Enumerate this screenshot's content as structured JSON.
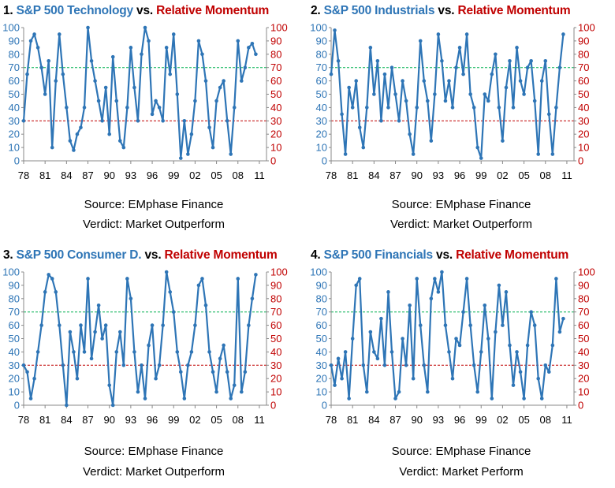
{
  "panels": [
    {
      "title_num": "1.",
      "title_main": "S&P 500 Technology",
      "title_vs": "vs.",
      "title_rel": "Relative Momentum",
      "source": "Source: EMphase Finance",
      "verdict": "Verdict: Market Outperform"
    },
    {
      "title_num": "2.",
      "title_main": "S&P 500 Industrials",
      "title_vs": "vs.",
      "title_rel": "Relative Momentum",
      "source": "Source: EMphase Finance",
      "verdict": "Verdict: Market Outperform"
    },
    {
      "title_num": "3.",
      "title_main": "S&P 500 Consumer D.",
      "title_vs": "vs.",
      "title_rel": "Relative Momentum",
      "source": "Source: EMphase Finance",
      "verdict": "Verdict: Market Outperform"
    },
    {
      "title_num": "4.",
      "title_main": "S&P 500 Financials",
      "title_vs": "vs.",
      "title_rel": "Relative Momentum",
      "source": "Source: EMphase Finance",
      "verdict": "Verdict: Market Perform"
    }
  ],
  "colors": {
    "series": "#2e75b6",
    "left_axis": "#2e75b6",
    "right_axis": "#c00000",
    "upper_threshold": "#00b050",
    "lower_threshold": "#c00000"
  },
  "chart_data": [
    {
      "type": "line",
      "title": "S&P 500 Technology vs. Relative Momentum",
      "xlim": [
        1978,
        2012
      ],
      "ylim": [
        0,
        100
      ],
      "x_ticks": [
        "78",
        "81",
        "84",
        "87",
        "90",
        "93",
        "96",
        "99",
        "02",
        "05",
        "08",
        "11"
      ],
      "y_ticks": [
        0,
        10,
        20,
        30,
        40,
        50,
        60,
        70,
        80,
        90,
        100
      ],
      "reference_lines": [
        70,
        30
      ],
      "x": [
        1978.0,
        1978.5,
        1979.0,
        1979.5,
        1980.0,
        1980.5,
        1981.0,
        1981.5,
        1982.0,
        1982.5,
        1983.0,
        1983.5,
        1984.0,
        1984.5,
        1985.0,
        1985.5,
        1986.0,
        1986.5,
        1987.0,
        1987.5,
        1988.0,
        1988.5,
        1989.0,
        1989.5,
        1990.0,
        1990.5,
        1991.0,
        1991.5,
        1992.0,
        1992.5,
        1993.0,
        1993.5,
        1994.0,
        1994.5,
        1995.0,
        1995.5,
        1996.0,
        1996.5,
        1997.0,
        1997.5,
        1998.0,
        1998.5,
        1999.0,
        1999.5,
        2000.0,
        2000.5,
        2001.0,
        2001.5,
        2002.0,
        2002.5,
        2003.0,
        2003.5,
        2004.0,
        2004.5,
        2005.0,
        2005.5,
        2006.0,
        2006.5,
        2007.0,
        2007.5,
        2008.0,
        2008.5,
        2009.0,
        2009.5,
        2010.0,
        2010.5
      ],
      "y": [
        30,
        65,
        90,
        95,
        85,
        70,
        50,
        75,
        10,
        60,
        95,
        65,
        40,
        15,
        8,
        20,
        25,
        40,
        100,
        75,
        60,
        45,
        30,
        55,
        20,
        78,
        45,
        15,
        10,
        40,
        85,
        55,
        30,
        80,
        100,
        90,
        35,
        45,
        40,
        30,
        85,
        65,
        95,
        50,
        2,
        30,
        5,
        20,
        45,
        90,
        80,
        60,
        25,
        10,
        45,
        55,
        60,
        30,
        5,
        40,
        90,
        60,
        70,
        85,
        88,
        80
      ]
    },
    {
      "type": "line",
      "title": "S&P 500 Industrials vs. Relative Momentum",
      "xlim": [
        1978,
        2012
      ],
      "ylim": [
        0,
        100
      ],
      "x_ticks": [
        "78",
        "81",
        "84",
        "87",
        "90",
        "93",
        "96",
        "99",
        "02",
        "05",
        "08",
        "11"
      ],
      "y_ticks": [
        0,
        10,
        20,
        30,
        40,
        50,
        60,
        70,
        80,
        90,
        100
      ],
      "reference_lines": [
        70,
        30
      ],
      "x": [
        1978.0,
        1978.5,
        1979.0,
        1979.5,
        1980.0,
        1980.5,
        1981.0,
        1981.5,
        1982.0,
        1982.5,
        1983.0,
        1983.5,
        1984.0,
        1984.5,
        1985.0,
        1985.5,
        1986.0,
        1986.5,
        1987.0,
        1987.5,
        1988.0,
        1988.5,
        1989.0,
        1989.5,
        1990.0,
        1990.5,
        1991.0,
        1991.5,
        1992.0,
        1992.5,
        1993.0,
        1993.5,
        1994.0,
        1994.5,
        1995.0,
        1995.5,
        1996.0,
        1996.5,
        1997.0,
        1997.5,
        1998.0,
        1998.5,
        1999.0,
        1999.5,
        2000.0,
        2000.5,
        2001.0,
        2001.5,
        2002.0,
        2002.5,
        2003.0,
        2003.5,
        2004.0,
        2004.5,
        2005.0,
        2005.5,
        2006.0,
        2006.5,
        2007.0,
        2007.5,
        2008.0,
        2008.5,
        2009.0,
        2009.5,
        2010.0,
        2010.5
      ],
      "y": [
        65,
        98,
        75,
        35,
        5,
        55,
        40,
        60,
        25,
        10,
        40,
        85,
        50,
        75,
        30,
        65,
        40,
        70,
        50,
        30,
        60,
        45,
        20,
        5,
        40,
        90,
        60,
        45,
        15,
        50,
        95,
        75,
        45,
        60,
        40,
        70,
        85,
        65,
        95,
        50,
        40,
        10,
        2,
        50,
        45,
        65,
        80,
        40,
        15,
        55,
        75,
        40,
        85,
        60,
        50,
        70,
        75,
        45,
        5,
        60,
        75,
        35,
        5,
        40,
        70,
        95
      ]
    },
    {
      "type": "line",
      "title": "S&P 500 Consumer D. vs. Relative Momentum",
      "xlim": [
        1978,
        2012
      ],
      "ylim": [
        0,
        100
      ],
      "x_ticks": [
        "78",
        "81",
        "84",
        "87",
        "90",
        "93",
        "96",
        "99",
        "02",
        "05",
        "08",
        "11"
      ],
      "y_ticks": [
        0,
        10,
        20,
        30,
        40,
        50,
        60,
        70,
        80,
        90,
        100
      ],
      "reference_lines": [
        70,
        30
      ],
      "x": [
        1978.0,
        1978.5,
        1979.0,
        1979.5,
        1980.0,
        1980.5,
        1981.0,
        1981.5,
        1982.0,
        1982.5,
        1983.0,
        1983.5,
        1984.0,
        1984.5,
        1985.0,
        1985.5,
        1986.0,
        1986.5,
        1987.0,
        1987.5,
        1988.0,
        1988.5,
        1989.0,
        1989.5,
        1990.0,
        1990.5,
        1991.0,
        1991.5,
        1992.0,
        1992.5,
        1993.0,
        1993.5,
        1994.0,
        1994.5,
        1995.0,
        1995.5,
        1996.0,
        1996.5,
        1997.0,
        1997.5,
        1998.0,
        1998.5,
        1999.0,
        1999.5,
        2000.0,
        2000.5,
        2001.0,
        2001.5,
        2002.0,
        2002.5,
        2003.0,
        2003.5,
        2004.0,
        2004.5,
        2005.0,
        2005.5,
        2006.0,
        2006.5,
        2007.0,
        2007.5,
        2008.0,
        2008.5,
        2009.0,
        2009.5,
        2010.0,
        2010.5
      ],
      "y": [
        30,
        25,
        5,
        20,
        40,
        60,
        85,
        98,
        95,
        85,
        60,
        30,
        0,
        55,
        40,
        20,
        60,
        40,
        95,
        35,
        55,
        75,
        50,
        60,
        15,
        0,
        40,
        55,
        30,
        95,
        80,
        40,
        10,
        30,
        5,
        45,
        60,
        20,
        30,
        60,
        100,
        85,
        70,
        40,
        25,
        5,
        30,
        40,
        60,
        90,
        95,
        75,
        40,
        25,
        10,
        35,
        45,
        25,
        5,
        15,
        95,
        10,
        25,
        60,
        80,
        98
      ]
    },
    {
      "type": "line",
      "title": "S&P 500 Financials vs. Relative Momentum",
      "xlim": [
        1978,
        2012
      ],
      "ylim": [
        0,
        100
      ],
      "x_ticks": [
        "78",
        "81",
        "84",
        "87",
        "90",
        "93",
        "96",
        "99",
        "02",
        "05",
        "08",
        "11"
      ],
      "y_ticks": [
        0,
        10,
        20,
        30,
        40,
        50,
        60,
        70,
        80,
        90,
        100
      ],
      "reference_lines": [
        70,
        30
      ],
      "x": [
        1978.0,
        1978.5,
        1979.0,
        1979.5,
        1980.0,
        1980.5,
        1981.0,
        1981.5,
        1982.0,
        1982.5,
        1983.0,
        1983.5,
        1984.0,
        1984.5,
        1985.0,
        1985.5,
        1986.0,
        1986.5,
        1987.0,
        1987.5,
        1988.0,
        1988.5,
        1989.0,
        1989.5,
        1990.0,
        1990.5,
        1991.0,
        1991.5,
        1992.0,
        1992.5,
        1993.0,
        1993.5,
        1994.0,
        1994.5,
        1995.0,
        1995.5,
        1996.0,
        1996.5,
        1997.0,
        1997.5,
        1998.0,
        1998.5,
        1999.0,
        1999.5,
        2000.0,
        2000.5,
        2001.0,
        2001.5,
        2002.0,
        2002.5,
        2003.0,
        2003.5,
        2004.0,
        2004.5,
        2005.0,
        2005.5,
        2006.0,
        2006.5,
        2007.0,
        2007.5,
        2008.0,
        2008.5,
        2009.0,
        2009.5,
        2010.0,
        2010.5
      ],
      "y": [
        30,
        15,
        35,
        20,
        40,
        5,
        50,
        90,
        95,
        30,
        10,
        55,
        40,
        35,
        65,
        30,
        85,
        40,
        5,
        10,
        50,
        30,
        75,
        20,
        95,
        60,
        30,
        10,
        80,
        95,
        85,
        100,
        60,
        40,
        20,
        50,
        45,
        70,
        95,
        60,
        30,
        10,
        40,
        75,
        50,
        5,
        55,
        90,
        60,
        85,
        45,
        15,
        40,
        25,
        5,
        45,
        70,
        60,
        20,
        5,
        30,
        25,
        45,
        95,
        55,
        65
      ]
    }
  ]
}
